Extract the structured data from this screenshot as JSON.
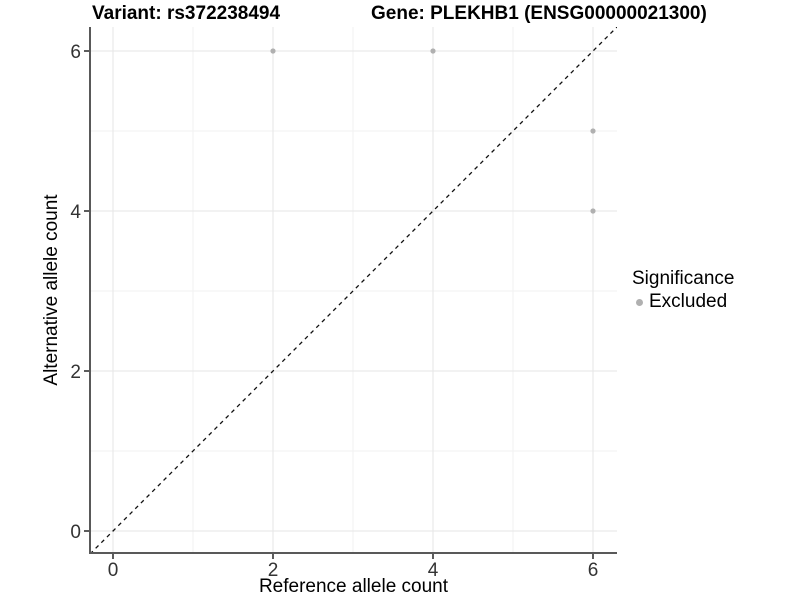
{
  "titles": {
    "variant": "Variant: rs372238494",
    "gene": "Gene: PLEKHB1 (ENSG00000021300)"
  },
  "axes": {
    "x": {
      "label": "Reference allele count"
    },
    "y": {
      "label": "Alternative allele count"
    }
  },
  "legend": {
    "title": "Significance",
    "items": [
      {
        "label": "Excluded",
        "color": "#b0b0b0"
      }
    ]
  },
  "chart_data": {
    "type": "scatter",
    "title": "Variant: rs372238494   Gene: PLEKHB1 (ENSG00000021300)",
    "xlabel": "Reference allele count",
    "ylabel": "Alternative allele count",
    "series": [
      {
        "name": "Excluded",
        "color": "#b0b0b0",
        "points": [
          [
            2,
            6
          ],
          [
            4,
            6
          ],
          [
            6,
            5
          ],
          [
            6,
            4
          ]
        ]
      }
    ],
    "reference_line": {
      "type": "identity",
      "slope": 1,
      "intercept": 0,
      "style": "dashed",
      "color": "#111111"
    },
    "xlim": [
      -0.2875,
      6.3
    ],
    "ylim": [
      -0.275,
      6.3
    ],
    "x_major_ticks": [
      0,
      2,
      4,
      6
    ],
    "y_major_ticks": [
      0,
      2,
      4,
      6
    ],
    "x_minor_ticks": [
      1,
      3,
      5
    ],
    "y_minor_ticks": [
      1,
      3,
      5
    ],
    "grid": "major+minor",
    "legend_position": "right",
    "colors": {
      "point": "#b0b0b0",
      "axis_line": "#595959",
      "tick_mark": "#4a4a4a",
      "grid_major": "#e5e5e5",
      "grid_minor": "#f2f2f2",
      "tick_label": "#333333",
      "background": "#ffffff"
    }
  }
}
